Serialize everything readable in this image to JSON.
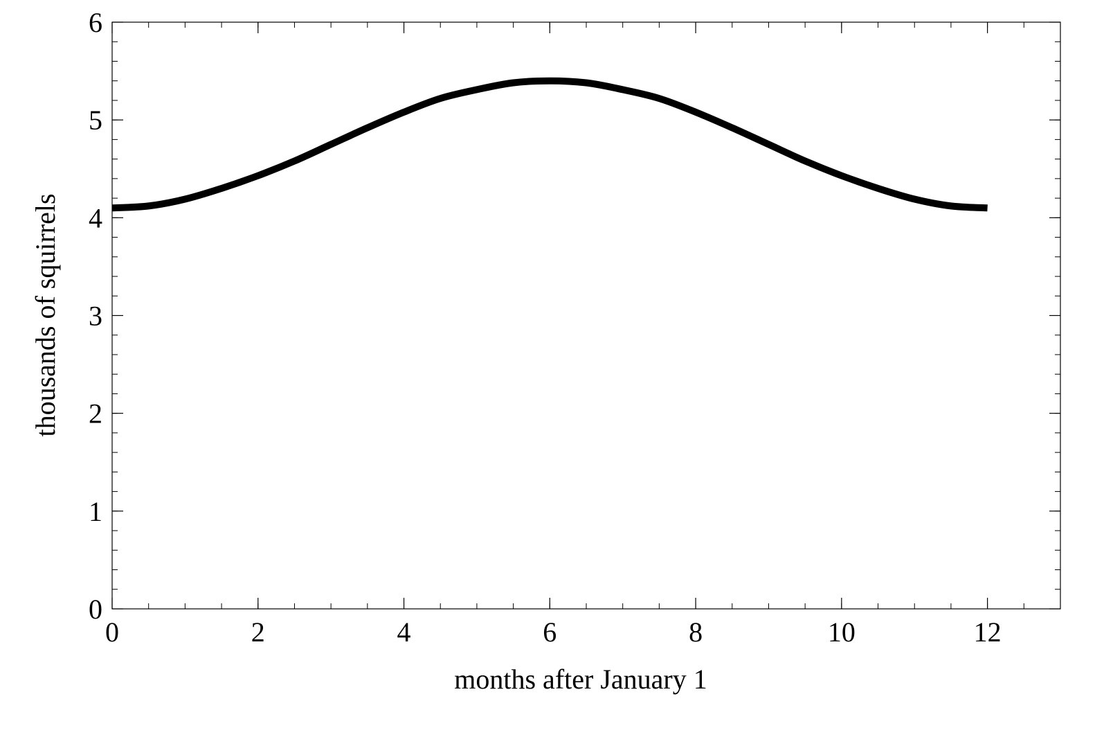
{
  "chart_data": {
    "type": "line",
    "xlabel": "months after January 1",
    "ylabel": "thousands of squirrels",
    "xlim": [
      0,
      13
    ],
    "ylim": [
      0,
      6
    ],
    "x_ticks": [
      0,
      2,
      4,
      6,
      8,
      10,
      12
    ],
    "x_tick_labels": [
      "0",
      "2",
      "4",
      "6",
      "8",
      "10",
      "12"
    ],
    "x_minor_step": 0.5,
    "y_ticks": [
      0,
      1,
      2,
      3,
      4,
      5,
      6
    ],
    "y_tick_labels": [
      "0",
      "1",
      "2",
      "3",
      "4",
      "5",
      "6"
    ],
    "y_minor_step": 0.2,
    "grid": false,
    "series": [
      {
        "x": [
          0,
          0.5,
          1,
          1.5,
          2,
          2.5,
          3,
          3.5,
          4,
          4.5,
          5,
          5.5,
          6,
          6.5,
          7,
          7.5,
          8,
          8.5,
          9,
          9.5,
          10,
          10.5,
          11,
          11.5,
          12
        ],
        "y": [
          4.1,
          4.12,
          4.19,
          4.3,
          4.43,
          4.58,
          4.75,
          4.92,
          5.08,
          5.22,
          5.31,
          5.38,
          5.4,
          5.38,
          5.31,
          5.22,
          5.08,
          4.92,
          4.75,
          4.58,
          4.43,
          4.3,
          4.19,
          4.12,
          4.1
        ],
        "color": "#000000"
      }
    ]
  }
}
